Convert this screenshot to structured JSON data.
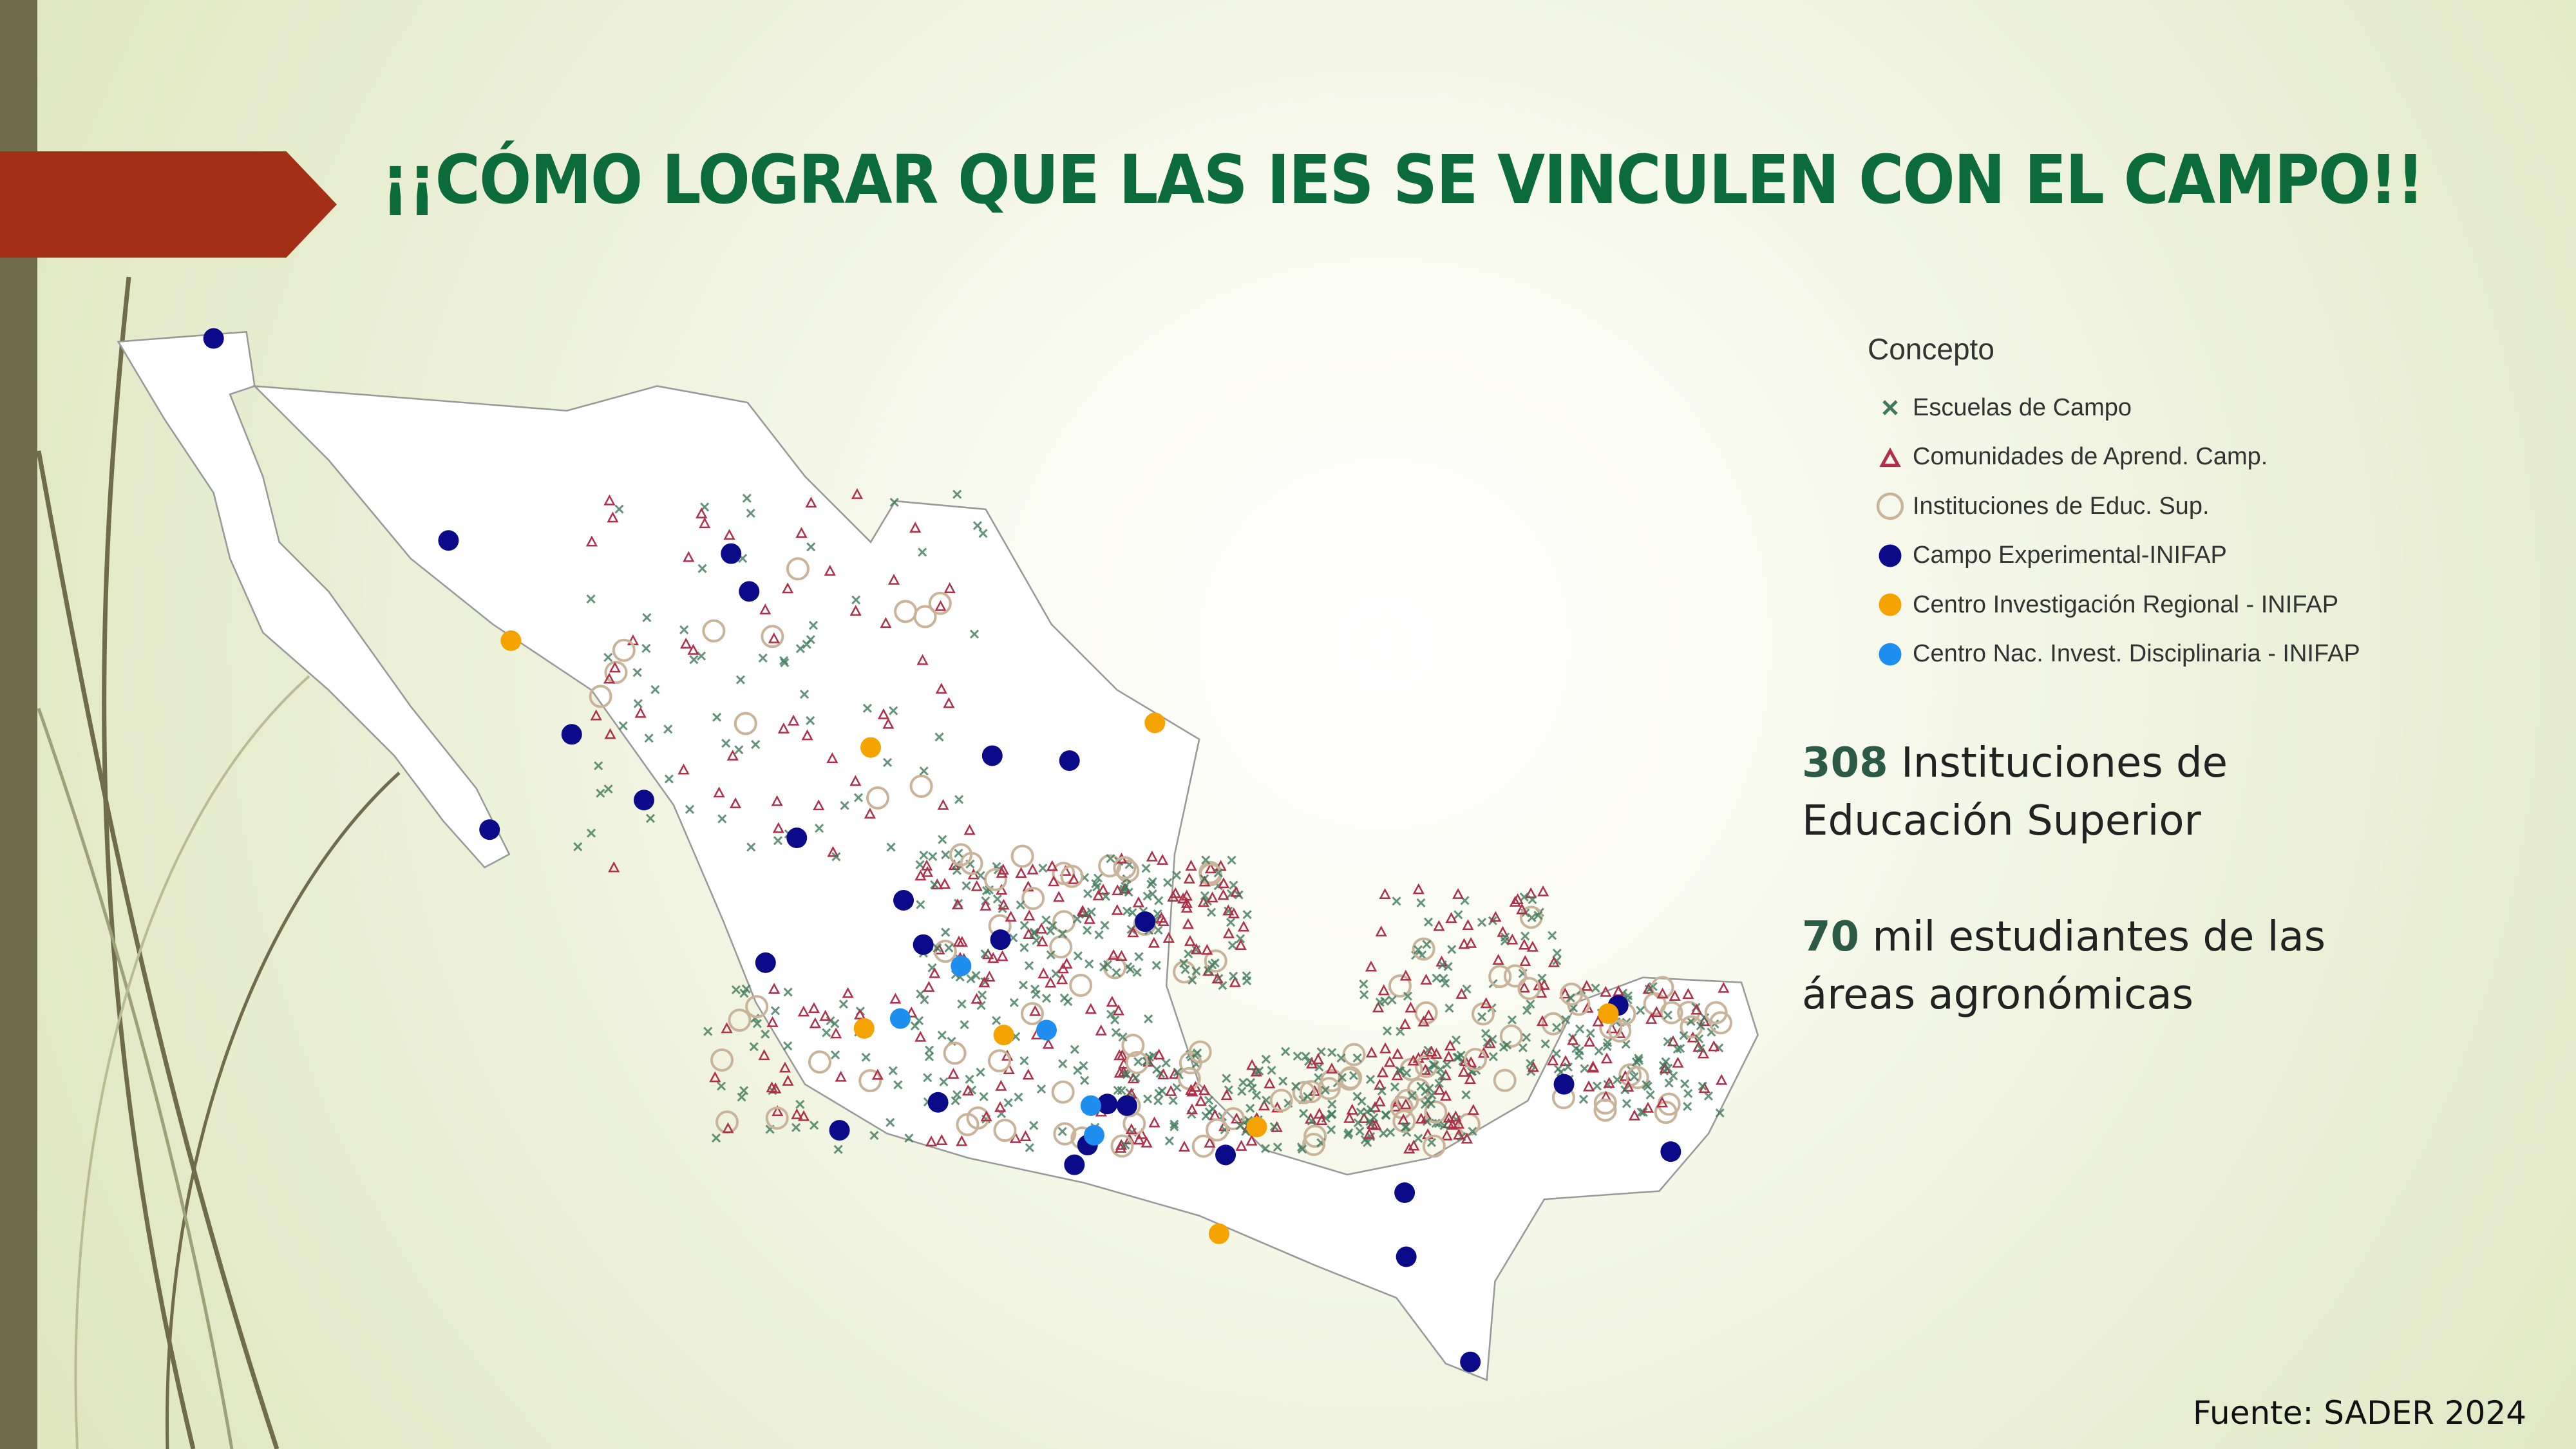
{
  "slide": {
    "title": "¡¡CÓMO LOGRAR QUE LAS IES SE VINCULEN CON EL CAMPO!!",
    "accent_color": "#a33016",
    "title_color": "#0b6b3a"
  },
  "legend": {
    "title": "Concepto",
    "items": [
      {
        "label": "Escuelas de Campo",
        "symbol": "x-mark",
        "color": "#3f7a5a"
      },
      {
        "label": "Comunidades de Aprend. Camp.",
        "symbol": "triangle",
        "color": "#b0304a"
      },
      {
        "label": "Instituciones de Educ. Sup.",
        "symbol": "ring",
        "color": "#c9b49a"
      },
      {
        "label": "Campo Experimental-INIFAP",
        "symbol": "dot",
        "color": "#0b0b8a"
      },
      {
        "label": "Centro Investigación Regional - INIFAP",
        "symbol": "dot",
        "color": "#f5a300"
      },
      {
        "label": "Centro Nac. Invest. Disciplinaria - INIFAP",
        "symbol": "dot",
        "color": "#1e8ef0"
      }
    ]
  },
  "stats": [
    {
      "number": "308",
      "text": " Instituciones de Educación Superior"
    },
    {
      "number": "70",
      "text": " mil estudiantes de las áreas agronómicas"
    }
  ],
  "source": "Fuente: SADER 2024"
}
